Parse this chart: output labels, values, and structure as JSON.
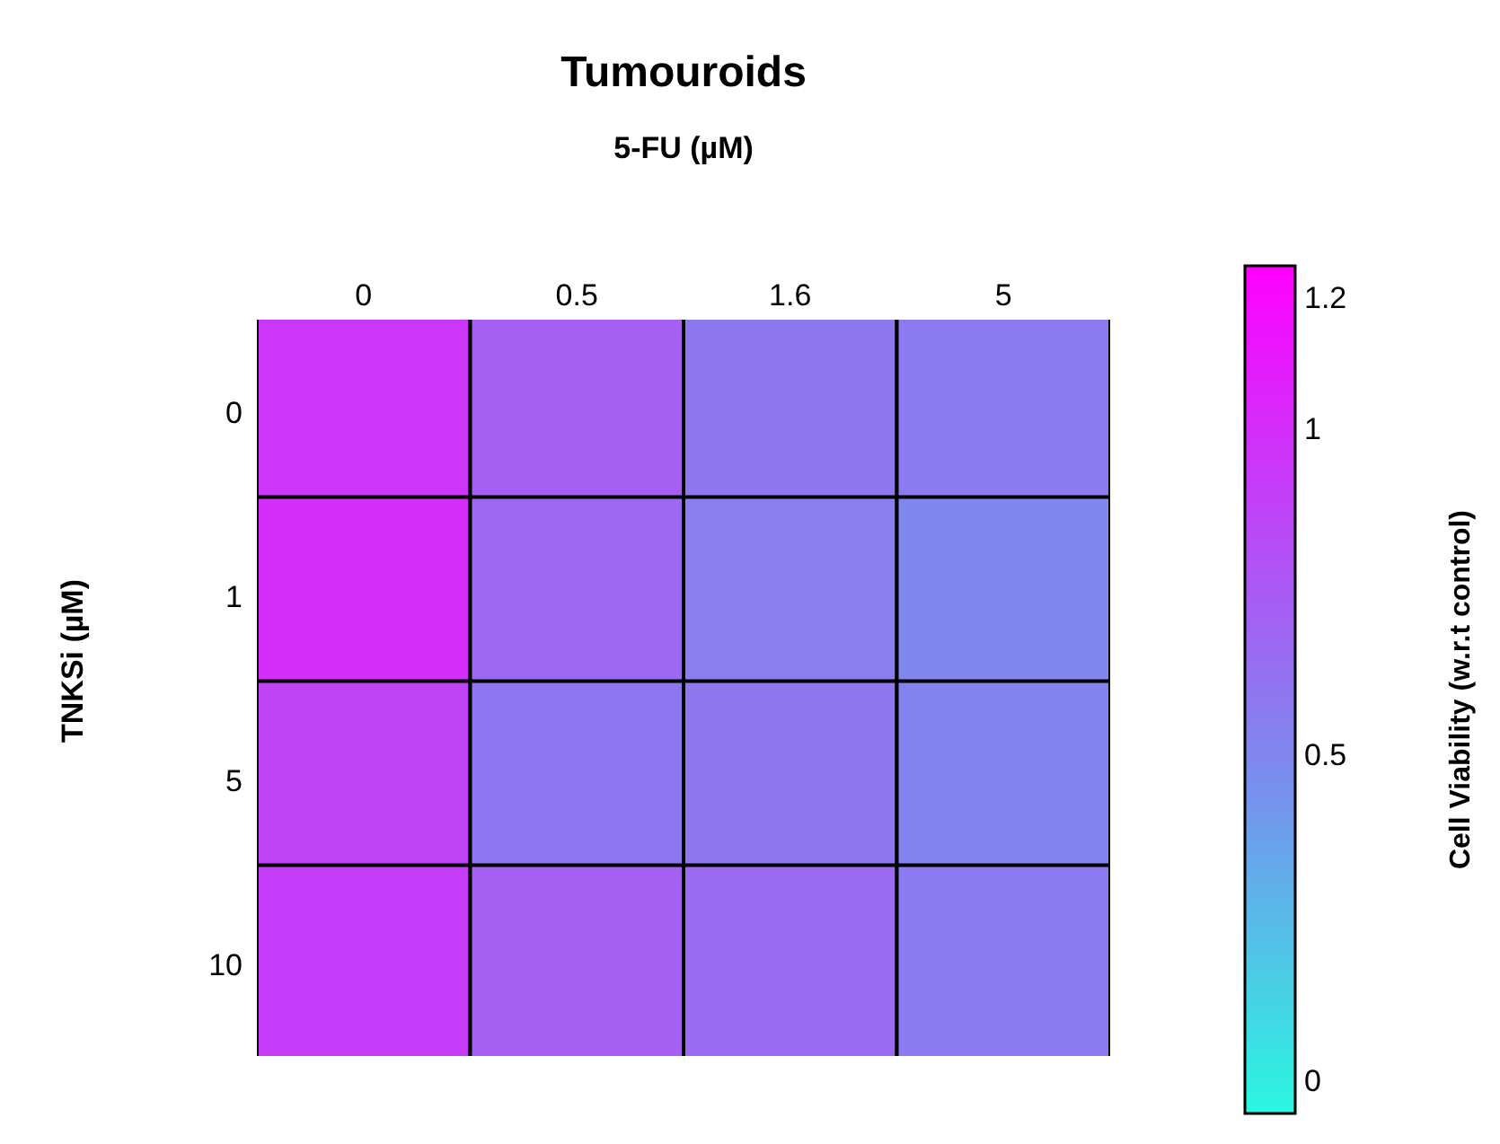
{
  "chart_data": {
    "type": "heatmap",
    "title": "Tumouroids",
    "xlabel": "5-FU (µM)",
    "ylabel": "TNKSi (µM)",
    "clabel": "Cell Viability (w.r.t control)",
    "categories": [
      "0",
      "0.5",
      "1.6",
      "5"
    ],
    "y_categories": [
      "0",
      "1",
      "5",
      "10"
    ],
    "cells": [
      [
        0.95,
        0.72,
        0.58,
        0.57
      ],
      [
        1.0,
        0.67,
        0.55,
        0.5
      ],
      [
        0.88,
        0.59,
        0.58,
        0.52
      ],
      [
        0.91,
        0.72,
        0.66,
        0.57
      ]
    ],
    "clim": [
      -0.05,
      1.25
    ],
    "cticks": [
      0,
      0.5,
      1,
      1.2
    ]
  }
}
